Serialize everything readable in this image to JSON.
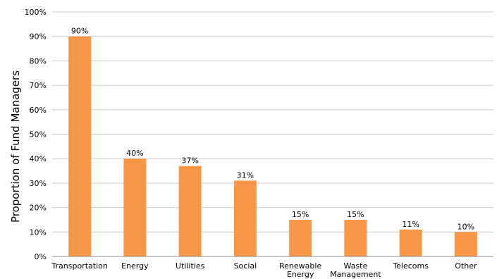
{
  "chart_data": {
    "type": "bar",
    "categories": [
      [
        "Transportation"
      ],
      [
        "Energy"
      ],
      [
        "Utilities"
      ],
      [
        "Social"
      ],
      [
        "Renewable",
        "Energy"
      ],
      [
        "Waste",
        "Management"
      ],
      [
        "Telecoms"
      ],
      [
        "Other"
      ]
    ],
    "values": [
      90,
      40,
      37,
      31,
      15,
      15,
      11,
      10
    ],
    "data_labels": [
      "90%",
      "40%",
      "37%",
      "31%",
      "15%",
      "15%",
      "11%",
      "10%"
    ],
    "title": "",
    "xlabel": "",
    "ylabel": "Proportion of Fund Managers",
    "ylim": [
      0,
      100
    ],
    "yticks": [
      0,
      10,
      20,
      30,
      40,
      50,
      60,
      70,
      80,
      90,
      100
    ],
    "ytick_labels": [
      "0%",
      "10%",
      "20%",
      "30%",
      "40%",
      "50%",
      "60%",
      "70%",
      "80%",
      "90%",
      "100%"
    ],
    "grid": true,
    "bar_color": "#F79646",
    "grid_color": "#C8C8C8"
  }
}
